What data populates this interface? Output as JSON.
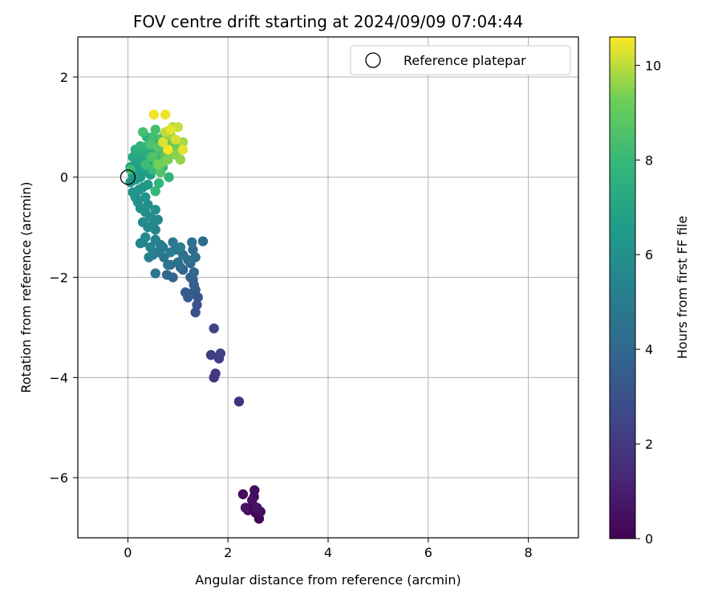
{
  "chart_data": {
    "type": "scatter",
    "title": "FOV centre drift starting at 2024/09/09 07:04:44",
    "xlabel": "Angular distance from reference (arcmin)",
    "ylabel": "Rotation from reference (arcmin)",
    "xlim": [
      -1.0,
      9.0
    ],
    "ylim": [
      -7.2,
      2.8
    ],
    "x_ticks": [
      0,
      2,
      4,
      6,
      8
    ],
    "x_tick_labels": [
      "0",
      "2",
      "4",
      "6",
      "8"
    ],
    "y_ticks": [
      -6,
      -4,
      -2,
      0,
      2
    ],
    "y_tick_labels": [
      "−6",
      "−4",
      "−2",
      "0",
      "2"
    ],
    "grid": true,
    "colormap": "viridis",
    "colorbar": {
      "label": "Hours from first FF file",
      "range": [
        0,
        10.6
      ],
      "ticks": [
        0,
        2,
        4,
        6,
        8,
        10
      ],
      "tick_labels": [
        "0",
        "2",
        "4",
        "6",
        "8",
        "10"
      ]
    },
    "legend": {
      "position": "top-right",
      "entries": [
        {
          "label": "Reference platepar",
          "marker": "open-circle"
        }
      ]
    },
    "reference_point": {
      "x": 0,
      "y": 0
    },
    "points": [
      [
        2.45,
        -6.62,
        0.05
      ],
      [
        2.55,
        -6.7,
        0.1
      ],
      [
        2.62,
        -6.82,
        0.15
      ],
      [
        2.5,
        -6.55,
        0.2
      ],
      [
        2.4,
        -6.65,
        0.25
      ],
      [
        2.52,
        -6.38,
        0.3
      ],
      [
        2.3,
        -6.33,
        0.35
      ],
      [
        2.53,
        -6.25,
        0.4
      ],
      [
        2.65,
        -6.68,
        0.45
      ],
      [
        2.48,
        -6.45,
        0.55
      ],
      [
        2.35,
        -6.6,
        0.6
      ],
      [
        2.58,
        -6.6,
        0.65
      ],
      [
        2.22,
        -4.48,
        1.7
      ],
      [
        1.72,
        -4.0,
        1.9
      ],
      [
        1.75,
        -3.92,
        2.0
      ],
      [
        1.82,
        -3.62,
        2.1
      ],
      [
        1.66,
        -3.55,
        2.2
      ],
      [
        1.85,
        -3.52,
        2.35
      ],
      [
        1.72,
        -3.02,
        2.5
      ],
      [
        1.35,
        -2.7,
        3.0
      ],
      [
        1.38,
        -2.55,
        3.1
      ],
      [
        1.4,
        -2.4,
        3.2
      ],
      [
        1.28,
        -2.32,
        3.3
      ],
      [
        1.35,
        -2.25,
        3.4
      ],
      [
        1.2,
        -2.4,
        3.5
      ],
      [
        1.15,
        -2.3,
        3.55
      ],
      [
        1.32,
        -2.15,
        3.6
      ],
      [
        1.3,
        -2.05,
        3.7
      ],
      [
        1.25,
        -2.0,
        3.75
      ],
      [
        1.1,
        -1.85,
        3.8
      ],
      [
        0.85,
        -1.75,
        3.9
      ],
      [
        0.9,
        -2.0,
        3.95
      ],
      [
        0.78,
        -1.95,
        4.0
      ],
      [
        1.32,
        -1.9,
        4.05
      ],
      [
        1.05,
        -1.8,
        4.1
      ],
      [
        1.25,
        -1.72,
        4.15
      ],
      [
        1.5,
        -1.28,
        4.2
      ],
      [
        1.3,
        -1.45,
        4.25
      ],
      [
        1.35,
        -1.6,
        4.3
      ],
      [
        1.2,
        -1.65,
        4.35
      ],
      [
        1.0,
        -1.7,
        4.4
      ],
      [
        1.28,
        -1.3,
        4.45
      ],
      [
        1.1,
        -1.55,
        4.5
      ],
      [
        0.95,
        -1.45,
        4.6
      ],
      [
        0.8,
        -1.75,
        4.65
      ],
      [
        0.72,
        -1.6,
        4.7
      ],
      [
        0.55,
        -1.92,
        4.75
      ],
      [
        0.7,
        -1.4,
        4.8
      ],
      [
        0.9,
        -1.3,
        4.85
      ],
      [
        0.6,
        -1.5,
        4.9
      ],
      [
        0.65,
        -1.35,
        4.95
      ],
      [
        0.5,
        -1.55,
        5.0
      ],
      [
        0.85,
        -1.5,
        5.05
      ],
      [
        1.05,
        -1.4,
        5.1
      ],
      [
        0.42,
        -1.6,
        5.2
      ],
      [
        0.55,
        -1.25,
        5.25
      ],
      [
        0.3,
        -1.3,
        5.3
      ],
      [
        0.45,
        -1.4,
        5.35
      ],
      [
        0.25,
        -1.32,
        5.4
      ],
      [
        0.55,
        -1.05,
        5.45
      ],
      [
        0.35,
        -1.2,
        5.5
      ],
      [
        0.5,
        -0.95,
        5.55
      ],
      [
        0.6,
        -0.85,
        5.6
      ],
      [
        0.4,
        -1.0,
        5.65
      ],
      [
        0.3,
        -0.9,
        5.7
      ],
      [
        0.45,
        -0.8,
        5.75
      ],
      [
        0.35,
        -0.7,
        5.8
      ],
      [
        0.55,
        -0.65,
        5.85
      ],
      [
        0.4,
        -0.55,
        5.9
      ],
      [
        0.25,
        -0.62,
        5.95
      ],
      [
        0.2,
        -0.5,
        6.0
      ],
      [
        0.15,
        -0.4,
        6.05
      ],
      [
        0.35,
        -0.4,
        6.1
      ],
      [
        0.1,
        -0.3,
        6.15
      ],
      [
        0.22,
        -0.25,
        6.2
      ],
      [
        0.3,
        -0.2,
        6.25
      ],
      [
        0.05,
        -0.1,
        6.3
      ],
      [
        0.15,
        -0.05,
        6.35
      ],
      [
        0.4,
        -0.15,
        6.4
      ],
      [
        0.25,
        0.0,
        6.5
      ],
      [
        0.1,
        0.05,
        6.55
      ],
      [
        0.3,
        0.1,
        6.6
      ],
      [
        0.45,
        0.05,
        6.65
      ],
      [
        0.2,
        0.15,
        6.7
      ],
      [
        0.35,
        0.2,
        6.75
      ],
      [
        0.15,
        0.25,
        6.8
      ],
      [
        0.05,
        0.2,
        6.85
      ],
      [
        0.4,
        0.3,
        6.9
      ],
      [
        0.25,
        0.35,
        6.95
      ],
      [
        0.55,
        0.25,
        7.0
      ],
      [
        0.1,
        0.4,
        7.05
      ],
      [
        0.3,
        0.45,
        7.1
      ],
      [
        0.2,
        0.5,
        7.15
      ],
      [
        0.4,
        0.5,
        7.2
      ],
      [
        0.55,
        0.45,
        7.25
      ],
      [
        0.65,
        0.35,
        7.3
      ],
      [
        0.5,
        0.6,
        7.35
      ],
      [
        0.35,
        0.6,
        7.4
      ],
      [
        0.15,
        0.55,
        7.45
      ],
      [
        0.38,
        0.8,
        7.5
      ],
      [
        0.45,
        0.7,
        7.55
      ],
      [
        0.6,
        0.75,
        7.6
      ],
      [
        0.75,
        0.65,
        7.65
      ],
      [
        0.25,
        0.62,
        7.7
      ],
      [
        0.6,
        0.55,
        7.75
      ],
      [
        0.8,
        0.4,
        7.8
      ],
      [
        0.82,
        0.0,
        7.85
      ],
      [
        0.62,
        -0.12,
        7.9
      ],
      [
        0.55,
        -0.28,
        7.95
      ],
      [
        0.7,
        0.2,
        8.0
      ],
      [
        0.5,
        0.15,
        8.05
      ],
      [
        0.35,
        0.25,
        8.1
      ],
      [
        0.05,
        0.15,
        8.15
      ],
      [
        0.45,
        0.4,
        8.2
      ],
      [
        0.65,
        0.5,
        8.25
      ],
      [
        0.5,
        0.8,
        8.3
      ],
      [
        0.3,
        0.9,
        8.35
      ],
      [
        0.55,
        0.95,
        8.4
      ],
      [
        0.7,
        0.8,
        8.45
      ],
      [
        0.45,
        0.65,
        8.5
      ],
      [
        0.65,
        0.1,
        8.6
      ],
      [
        0.5,
        0.4,
        8.65
      ],
      [
        0.6,
        0.6,
        8.7
      ],
      [
        0.75,
        0.45,
        8.8
      ],
      [
        0.9,
        0.55,
        8.9
      ],
      [
        0.85,
        0.7,
        9.0
      ],
      [
        1.0,
        0.6,
        9.1
      ],
      [
        0.7,
        0.3,
        9.2
      ],
      [
        0.6,
        0.25,
        9.3
      ],
      [
        0.8,
        0.35,
        9.4
      ],
      [
        0.95,
        0.45,
        9.5
      ],
      [
        1.05,
        0.35,
        9.6
      ],
      [
        0.85,
        0.85,
        9.7
      ],
      [
        1.1,
        0.7,
        9.8
      ],
      [
        0.9,
        1.0,
        9.9
      ],
      [
        0.75,
        0.9,
        10.0
      ],
      [
        1.0,
        1.0,
        10.1
      ],
      [
        0.95,
        0.75,
        10.2
      ],
      [
        0.7,
        0.7,
        10.3
      ],
      [
        1.1,
        0.55,
        10.35
      ],
      [
        0.85,
        0.95,
        10.4
      ],
      [
        0.75,
        1.25,
        10.45
      ],
      [
        0.52,
        1.25,
        10.5
      ],
      [
        0.8,
        0.55,
        10.55
      ]
    ]
  }
}
